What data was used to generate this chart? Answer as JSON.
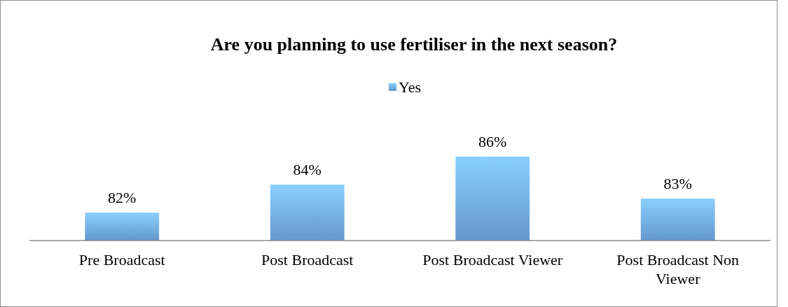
{
  "chart_data": {
    "type": "bar",
    "title": "Are you planning to use fertiliser in the next season?",
    "categories": [
      "Pre Broadcast",
      "Post Broadcast",
      "Post Broadcast Viewer",
      "Post Broadcast Non Viewer"
    ],
    "series": [
      {
        "name": "Yes",
        "color": "#6fa8e6",
        "values": [
          82,
          84,
          86,
          83
        ],
        "value_labels": [
          "82%",
          "84%",
          "86%",
          "83%"
        ]
      }
    ],
    "ylim": [
      80,
      86
    ],
    "tick_labels": "x",
    "legend": "top"
  }
}
